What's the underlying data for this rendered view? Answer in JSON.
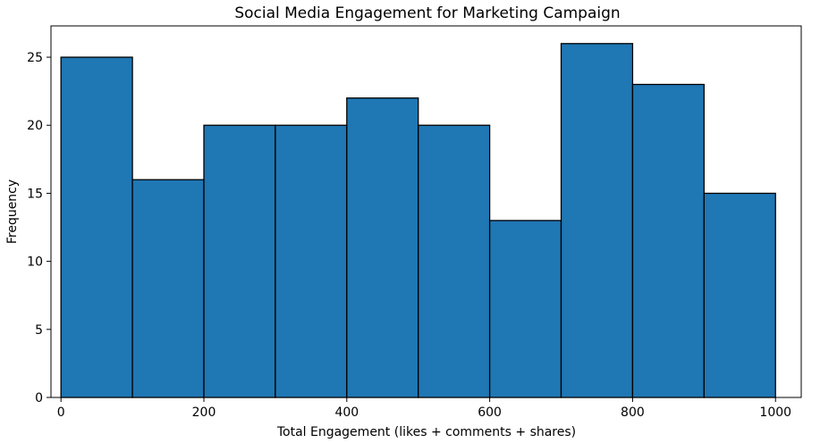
{
  "chart_data": {
    "type": "bar",
    "title": "Social Media Engagement for Marketing Campaign",
    "xlabel": "Total Engagement (likes + comments + shares)",
    "ylabel": "Frequency",
    "bin_edges": [
      0,
      100,
      200,
      300,
      400,
      500,
      600,
      700,
      800,
      900,
      1000
    ],
    "values": [
      25,
      16,
      20,
      20,
      22,
      20,
      13,
      26,
      23,
      15
    ],
    "xlim": [
      -14,
      1036
    ],
    "ylim": [
      0,
      27.3
    ],
    "x_ticks": [
      "0",
      "200",
      "400",
      "600",
      "800",
      "1000"
    ],
    "y_ticks": [
      "0",
      "5",
      "10",
      "15",
      "20",
      "25"
    ],
    "grid": false,
    "colors": {
      "bar_fill": "#1f77b4",
      "bar_edge": "#000000",
      "axis": "#000000"
    }
  }
}
